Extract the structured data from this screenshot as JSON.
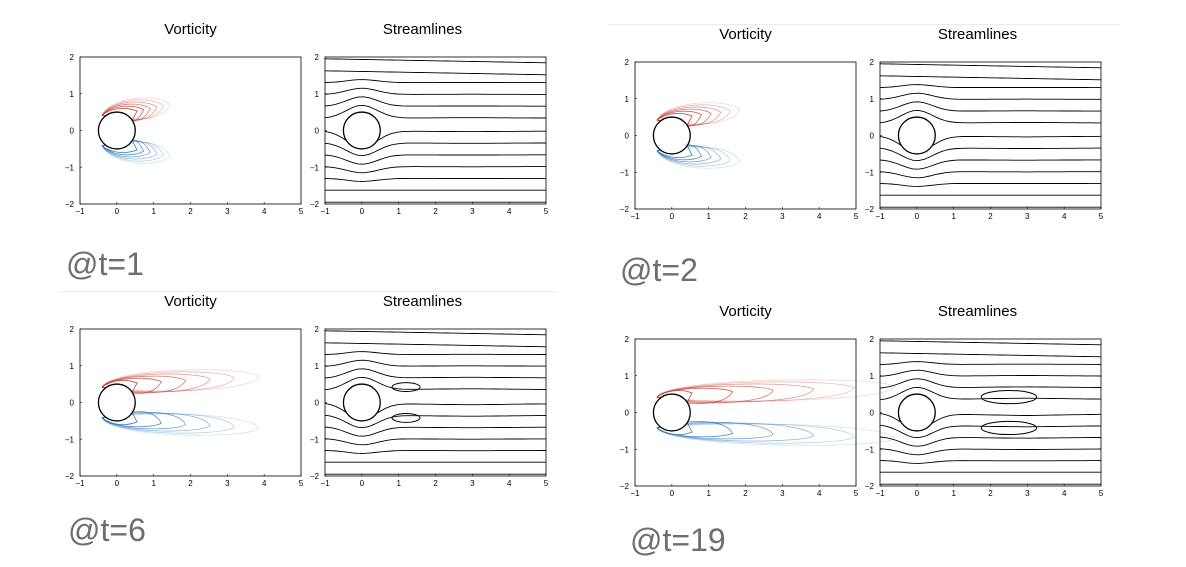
{
  "separators": [
    true,
    true
  ],
  "panels": [
    {
      "time_label": "@t=1",
      "vorticity_title": "Vorticity",
      "streamlines_title": "Streamlines",
      "wake_length": 0.9,
      "bubble": null,
      "stream_pinch": 0.45
    },
    {
      "time_label": "@t=2",
      "vorticity_title": "Vorticity",
      "streamlines_title": "Streamlines",
      "wake_length": 1.3,
      "bubble": null,
      "stream_pinch": 0.55
    },
    {
      "time_label": "@t=6",
      "vorticity_title": "Vorticity",
      "streamlines_title": "Streamlines",
      "wake_length": 3.3,
      "bubble": {
        "cx": 1.2,
        "cy": 0.42,
        "rx": 0.38,
        "ry": 0.12
      },
      "stream_pinch": 0.9
    },
    {
      "time_label": "@t=19",
      "vorticity_title": "Vorticity",
      "streamlines_title": "Streamlines",
      "wake_length": 5.5,
      "bubble": {
        "cx": 2.5,
        "cy": 0.42,
        "rx": 0.75,
        "ry": 0.18
      },
      "stream_pinch": 1.2
    }
  ],
  "axes": {
    "xlim": [
      -1,
      5
    ],
    "ylim": [
      -2,
      2
    ],
    "xticks": [
      "−1",
      "0",
      "1",
      "2",
      "3",
      "4",
      "5"
    ],
    "yticks": [
      "2",
      "1",
      "0",
      "−1",
      "−2"
    ]
  },
  "colors": {
    "positive_vorticity": "#c0392b",
    "negative_vorticity": "#2e75b6",
    "streamline": "#000000",
    "label_gray": "#6e6e6e"
  }
}
